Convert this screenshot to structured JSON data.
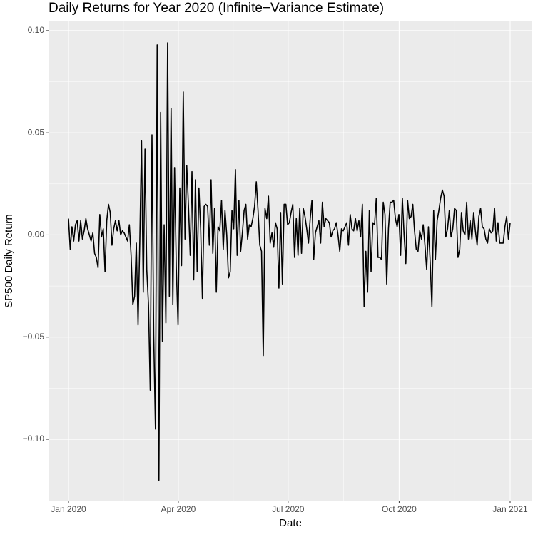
{
  "chart_data": {
    "type": "line",
    "title": "Daily Returns for Year 2020 (Infinite−Variance Estimate)",
    "x_label": "Date",
    "y_label": "SP500 Daily Return",
    "color": "#000000",
    "grid": true,
    "background": "#ebebeb",
    "xticks": [
      {
        "value": "2020-01",
        "label": "Jan 2020"
      },
      {
        "value": "2020-04",
        "label": "Apr 2020"
      },
      {
        "value": "2020-07",
        "label": "Jul 2020"
      },
      {
        "value": "2020-10",
        "label": "Oct 2020"
      },
      {
        "value": "2021-01",
        "label": "Jan 2021"
      }
    ],
    "ylim": [
      -0.13,
      0.1045
    ],
    "yticks": [
      {
        "value": -0.1,
        "label": "−0.10"
      },
      {
        "value": -0.05,
        "label": "−0.05"
      },
      {
        "value": 0,
        "label": "0.00"
      },
      {
        "value": 0.05,
        "label": "0.05"
      },
      {
        "value": 0.1,
        "label": "0.10"
      }
    ],
    "values": [
      0.008,
      -0.007,
      0.004,
      -0.003,
      0.005,
      0.007,
      -0.003,
      0.007,
      -0.002,
      0.002,
      0.008,
      0.003,
      0.0,
      -0.003,
      0.001,
      -0.009,
      -0.011,
      -0.016,
      0.01,
      -0.001,
      0.003,
      -0.018,
      0.007,
      0.015,
      0.011,
      -0.005,
      0.003,
      0.007,
      0.002,
      0.007,
      0.0,
      0.002,
      0.001,
      -0.001,
      -0.003,
      0.005,
      -0.01,
      -0.034,
      -0.03,
      -0.004,
      -0.044,
      -0.003,
      0.046,
      -0.028,
      0.042,
      -0.017,
      -0.034,
      -0.076,
      0.049,
      -0.049,
      -0.095,
      0.093,
      -0.12,
      0.06,
      -0.052,
      0.005,
      -0.043,
      0.094,
      -0.03,
      0.062,
      -0.034,
      0.033,
      -0.016,
      -0.044,
      0.023,
      -0.015,
      0.07,
      -0.002,
      0.034,
      0.014,
      -0.01,
      0.031,
      -0.022,
      0.027,
      -0.018,
      0.023,
      0.003,
      -0.031,
      0.014,
      0.015,
      0.014,
      -0.005,
      0.027,
      -0.009,
      0.013,
      -0.028,
      0.004,
      0.002,
      0.017,
      -0.007,
      0.012,
      0.0,
      -0.021,
      -0.018,
      0.012,
      0.003,
      0.032,
      -0.01,
      0.017,
      -0.008,
      0.001,
      0.012,
      0.015,
      -0.002,
      0.005,
      0.004,
      0.008,
      0.014,
      0.026,
      0.012,
      -0.005,
      -0.008,
      -0.059,
      0.013,
      0.008,
      0.019,
      -0.004,
      0.001,
      -0.006,
      0.006,
      0.003,
      -0.026,
      0.011,
      -0.024,
      0.015,
      0.015,
      0.005,
      0.006,
      0.011,
      0.015,
      -0.011,
      0.008,
      -0.01,
      0.013,
      -0.009,
      0.013,
      0.009,
      0.003,
      -0.004,
      0.008,
      0.017,
      -0.012,
      0.001,
      0.004,
      0.007,
      -0.004,
      0.016,
      0.004,
      0.008,
      0.007,
      0.006,
      -0.001,
      0.002,
      0.003,
      0.006,
      0.0,
      -0.008,
      0.003,
      0.002,
      0.004,
      0.006,
      -0.005,
      0.01,
      0.003,
      0.002,
      0.008,
      0.002,
      0.007,
      -0.001,
      0.015,
      -0.035,
      -0.008,
      -0.028,
      0.012,
      -0.018,
      0.006,
      0.005,
      0.018,
      -0.011,
      -0.011,
      -0.012,
      0.016,
      0.01,
      -0.024,
      0.003,
      0.016,
      0.016,
      0.017,
      0.008,
      0.004,
      0.01,
      -0.01,
      0.018,
      0.0,
      -0.014,
      0.017,
      0.008,
      0.009,
      0.015,
      0.002,
      -0.007,
      -0.008,
      0.002,
      -0.002,
      0.005,
      -0.005,
      -0.017,
      0.004,
      -0.013,
      -0.035,
      0.012,
      -0.012,
      0.007,
      0.012,
      0.018,
      0.022,
      0.019,
      -0.001,
      0.003,
      0.012,
      -0.001,
      0.003,
      0.013,
      0.012,
      -0.011,
      -0.007,
      0.011,
      0.002,
      0.0,
      0.016,
      -0.002,
      0.007,
      -0.002,
      0.011,
      0.002,
      -0.005,
      0.009,
      0.013,
      0.004,
      0.003,
      -0.002,
      -0.004,
      0.003,
      0.001,
      0.002,
      0.013,
      -0.003,
      0.006,
      -0.004,
      -0.004,
      -0.004,
      0.004,
      0.009,
      -0.002,
      0.006
    ]
  }
}
